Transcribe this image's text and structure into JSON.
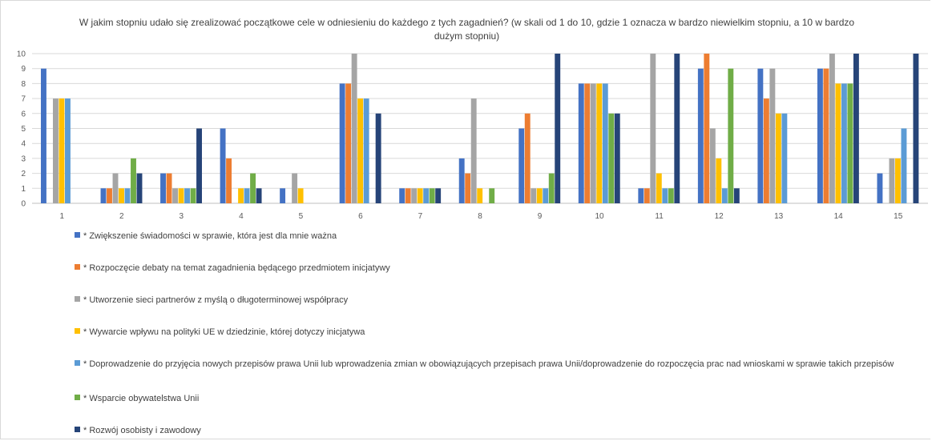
{
  "chart_data": {
    "type": "bar",
    "title": "W jakim stopniu udało się zrealizować początkowe cele w odniesieniu do każdego z tych zagadnień? (w skali od 1 do 10, gdzie 1 oznacza w bardzo niewielkim stopniu, a 10 w bardzo dużym stopniu)",
    "categories": [
      "1",
      "2",
      "3",
      "4",
      "5",
      "6",
      "7",
      "8",
      "9",
      "10",
      "11",
      "12",
      "13",
      "14",
      "15"
    ],
    "ylim": [
      0,
      10
    ],
    "yticks": [
      "0",
      "1",
      "2",
      "3",
      "4",
      "5",
      "6",
      "7",
      "8",
      "9",
      "10"
    ],
    "grid": "horizontal",
    "legend_position": "bottom",
    "series": [
      {
        "name": "* Zwiększenie świadomości w sprawie, która jest dla mnie ważna",
        "color": "#4472c4",
        "values": [
          9,
          1,
          2,
          5,
          1,
          8,
          1,
          3,
          5,
          8,
          1,
          9,
          9,
          9,
          2
        ]
      },
      {
        "name": "* Rozpoczęcie debaty na temat zagadnienia będącego przedmiotem inicjatywy",
        "color": "#ed7d31",
        "values": [
          0,
          1,
          2,
          3,
          0,
          8,
          1,
          2,
          6,
          8,
          1,
          10,
          7,
          9,
          0
        ]
      },
      {
        "name": "* Utworzenie sieci partnerów z myślą o długoterminowej współpracy",
        "color": "#a5a5a5",
        "values": [
          7,
          2,
          1,
          0,
          2,
          10,
          1,
          7,
          1,
          8,
          10,
          5,
          9,
          10,
          3
        ]
      },
      {
        "name": "* Wywarcie wpływu na polityki UE w dziedzinie, której dotyczy inicjatywa",
        "color": "#ffc000",
        "values": [
          7,
          1,
          1,
          1,
          1,
          7,
          1,
          1,
          1,
          8,
          2,
          3,
          6,
          8,
          3
        ]
      },
      {
        "name": "* Doprowadzenie do przyjęcia nowych przepisów prawa Unii lub wprowadzenia zmian w obowiązujących przepisach prawa Unii/doprowadzenie do rozpoczęcia prac nad wnioskami w sprawie takich przepisów",
        "color": "#5b9bd5",
        "values": [
          7,
          1,
          1,
          1,
          0,
          7,
          1,
          0,
          1,
          8,
          1,
          1,
          6,
          8,
          5
        ]
      },
      {
        "name": "* Wsparcie obywatelstwa Unii",
        "color": "#70ad47",
        "values": [
          0,
          3,
          1,
          2,
          0,
          0,
          1,
          1,
          2,
          6,
          1,
          9,
          0,
          8,
          0
        ]
      },
      {
        "name": "* Rozwój osobisty i zawodowy",
        "color": "#264478",
        "values": [
          0,
          2,
          5,
          1,
          0,
          6,
          1,
          0,
          10,
          6,
          10,
          1,
          0,
          10,
          10
        ]
      }
    ]
  }
}
